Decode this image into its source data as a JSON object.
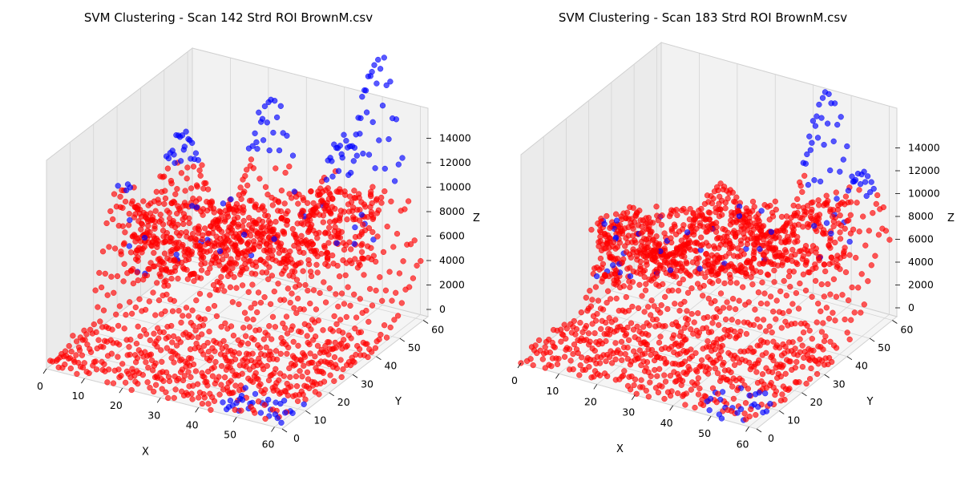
{
  "chart_data": [
    {
      "type": "scatter3d",
      "title": "SVM Clustering - Scan 142 Strd ROI BrownM.csv",
      "xlabel": "X",
      "ylabel": "Y",
      "zlabel": "Z",
      "xlim": [
        0,
        62
      ],
      "ylim": [
        0,
        62
      ],
      "zlim": [
        0,
        14500
      ],
      "xticks": [
        "0",
        "10",
        "20",
        "30",
        "40",
        "50",
        "60"
      ],
      "yticks": [
        "0",
        "10",
        "20",
        "30",
        "40",
        "50",
        "60"
      ],
      "zticks": [
        "0",
        "2000",
        "4000",
        "6000",
        "8000",
        "10000",
        "12000",
        "14000"
      ],
      "grid": true,
      "colors": {
        "cluster_0": "#ff0000",
        "cluster_1": "#0000ff"
      },
      "surface_peaks": [
        {
          "x": 2,
          "y": 30,
          "z": 7000
        },
        {
          "x": 8,
          "y": 45,
          "z": 9000
        },
        {
          "x": 22,
          "y": 60,
          "z": 10000
        },
        {
          "x": 50,
          "y": 60,
          "z": 14000
        },
        {
          "x": 42,
          "y": 58,
          "z": 9000
        },
        {
          "x": 28,
          "y": 45,
          "z": 5000
        }
      ]
    },
    {
      "type": "scatter3d",
      "title": "SVM Clustering - Scan 183 Strd ROI BrownM.csv",
      "xlabel": "X",
      "ylabel": "Y",
      "zlabel": "Z",
      "xlim": [
        0,
        62
      ],
      "ylim": [
        0,
        62
      ],
      "zlim": [
        0,
        16000
      ],
      "xticks": [
        "0",
        "10",
        "20",
        "30",
        "40",
        "50",
        "60"
      ],
      "yticks": [
        "0",
        "10",
        "20",
        "30",
        "40",
        "50",
        "60"
      ],
      "zticks": [
        "0",
        "2000",
        "4000",
        "6000",
        "8000",
        "10000",
        "12000",
        "14000"
      ],
      "grid": true,
      "colors": {
        "cluster_0": "#ff0000",
        "cluster_1": "#0000ff"
      },
      "surface_peaks": [
        {
          "x": 5,
          "y": 40,
          "z": 5000
        },
        {
          "x": 20,
          "y": 55,
          "z": 6000
        },
        {
          "x": 30,
          "y": 50,
          "z": 5500
        },
        {
          "x": 45,
          "y": 60,
          "z": 13000
        },
        {
          "x": 55,
          "y": 58,
          "z": 9000
        },
        {
          "x": 38,
          "y": 52,
          "z": 5000
        }
      ]
    }
  ]
}
